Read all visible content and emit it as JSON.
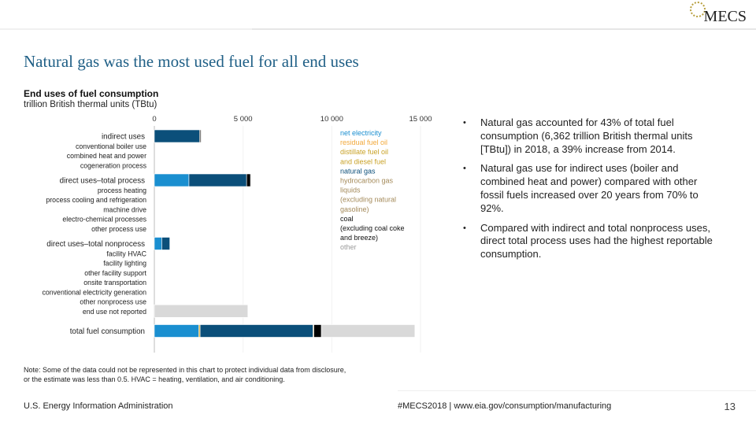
{
  "logo": {
    "text": "MECS",
    "icon": "gear-sun-icon"
  },
  "slide_title": "Natural gas was the most used fuel for all end uses",
  "bullets": [
    "Natural gas accounted for 43% of total fuel consumption (6,362 trillion British thermal units [TBtu]) in 2018, a 39% increase from 2014.",
    "Natural gas use for indirect uses (boiler and combined heat and power) compared with other fossil fuels increased over 20 years from 70% to 92%.",
    "Compared with indirect and total nonprocess uses, direct total process uses had the highest reportable consumption."
  ],
  "note_lines": [
    "Note: Some of the data could not be represented in this chart to protect individual data from disclosure,",
    "or the estimate was less than 0.5. HVAC = heating, ventilation, and air conditioning."
  ],
  "footer": {
    "left": "U.S. Energy Information Administration",
    "mid": "#MECS2018 | www.eia.gov/consumption/manufacturing",
    "page": "13"
  },
  "chart_data": {
    "type": "bar",
    "orientation": "horizontal",
    "stacked": true,
    "title": "End uses of fuel consumption",
    "subtitle": "trillion British thermal units (TBtu)",
    "xlim": [
      0,
      15000
    ],
    "xticks": [
      0,
      5000,
      10000,
      15000
    ],
    "xtick_labels": [
      "0",
      "5 000",
      "10 000",
      "15 000"
    ],
    "grid": false,
    "legend_position": "right",
    "categories": [
      {
        "label": "indirect uses",
        "header": true
      },
      {
        "label": "conventional boiler use"
      },
      {
        "label": "combined heat and power"
      },
      {
        "label": "cogeneration process"
      },
      {
        "label": "direct uses–total process",
        "header": true
      },
      {
        "label": "process heating"
      },
      {
        "label": "process cooling and refrigeration"
      },
      {
        "label": "machine drive"
      },
      {
        "label": "electro-chemical processes"
      },
      {
        "label": "other process use"
      },
      {
        "label": "direct uses–total nonprocess",
        "header": true
      },
      {
        "label": "facility HVAC"
      },
      {
        "label": "facility lighting"
      },
      {
        "label": "other facility support"
      },
      {
        "label": "onsite transportation"
      },
      {
        "label": "conventional electricity generation"
      },
      {
        "label": "other nonprocess use"
      },
      {
        "label": "end use not reported"
      },
      {
        "label": "total fuel consumption",
        "header": true
      }
    ],
    "series": [
      {
        "name": "net electricity",
        "color": "#1a8fd0"
      },
      {
        "name": "residual fuel oil",
        "color": "#f2a93b"
      },
      {
        "name": "distillate fuel oil and diesel fuel",
        "color": "#c9a227"
      },
      {
        "name": "natural gas",
        "color": "#0b4f7a"
      },
      {
        "name": "hydrocarbon gas liquids (excluding natural gasoline)",
        "color": "#a48a5a"
      },
      {
        "name": "coal (excluding coal coke and breeze)",
        "color": "#000000"
      },
      {
        "name": "other",
        "color": "#d9d9d9"
      }
    ],
    "legend_lines": [
      {
        "text": "net electricity",
        "series": 0
      },
      {
        "text": "residual fuel oil",
        "series": 1
      },
      {
        "text": "distillate fuel oil",
        "series": 2
      },
      {
        "text": "and diesel fuel",
        "series": 2
      },
      {
        "text": "natural gas",
        "series": 3
      },
      {
        "text": "hydrocarbon gas",
        "series": 4
      },
      {
        "text": "liquids",
        "series": 4
      },
      {
        "text": "(excluding natural",
        "series": 4
      },
      {
        "text": "gasoline)",
        "series": 4
      },
      {
        "text": "coal",
        "series": 5
      },
      {
        "text": "(excluding coal coke",
        "series": 5
      },
      {
        "text": "and breeze)",
        "series": 5
      },
      {
        "text": "other",
        "series": 6
      }
    ],
    "bars": [
      {
        "category": "indirect uses",
        "segments": [
          [
            3,
            2550
          ],
          [
            5,
            60
          ],
          [
            6,
            15
          ]
        ]
      },
      {
        "category": "direct uses–total process",
        "segments": [
          [
            0,
            1950
          ],
          [
            3,
            3250
          ],
          [
            5,
            220
          ],
          [
            6,
            20
          ]
        ]
      },
      {
        "category": "direct uses–total nonprocess",
        "segments": [
          [
            0,
            420
          ],
          [
            3,
            450
          ]
        ]
      },
      {
        "category": "end use not reported",
        "segments": [
          [
            6,
            5270
          ]
        ]
      },
      {
        "category": "total fuel consumption",
        "segments": [
          [
            0,
            2500
          ],
          [
            2,
            80
          ],
          [
            3,
            6362
          ],
          [
            4,
            50
          ],
          [
            5,
            420
          ],
          [
            6,
            5270
          ]
        ]
      }
    ]
  }
}
